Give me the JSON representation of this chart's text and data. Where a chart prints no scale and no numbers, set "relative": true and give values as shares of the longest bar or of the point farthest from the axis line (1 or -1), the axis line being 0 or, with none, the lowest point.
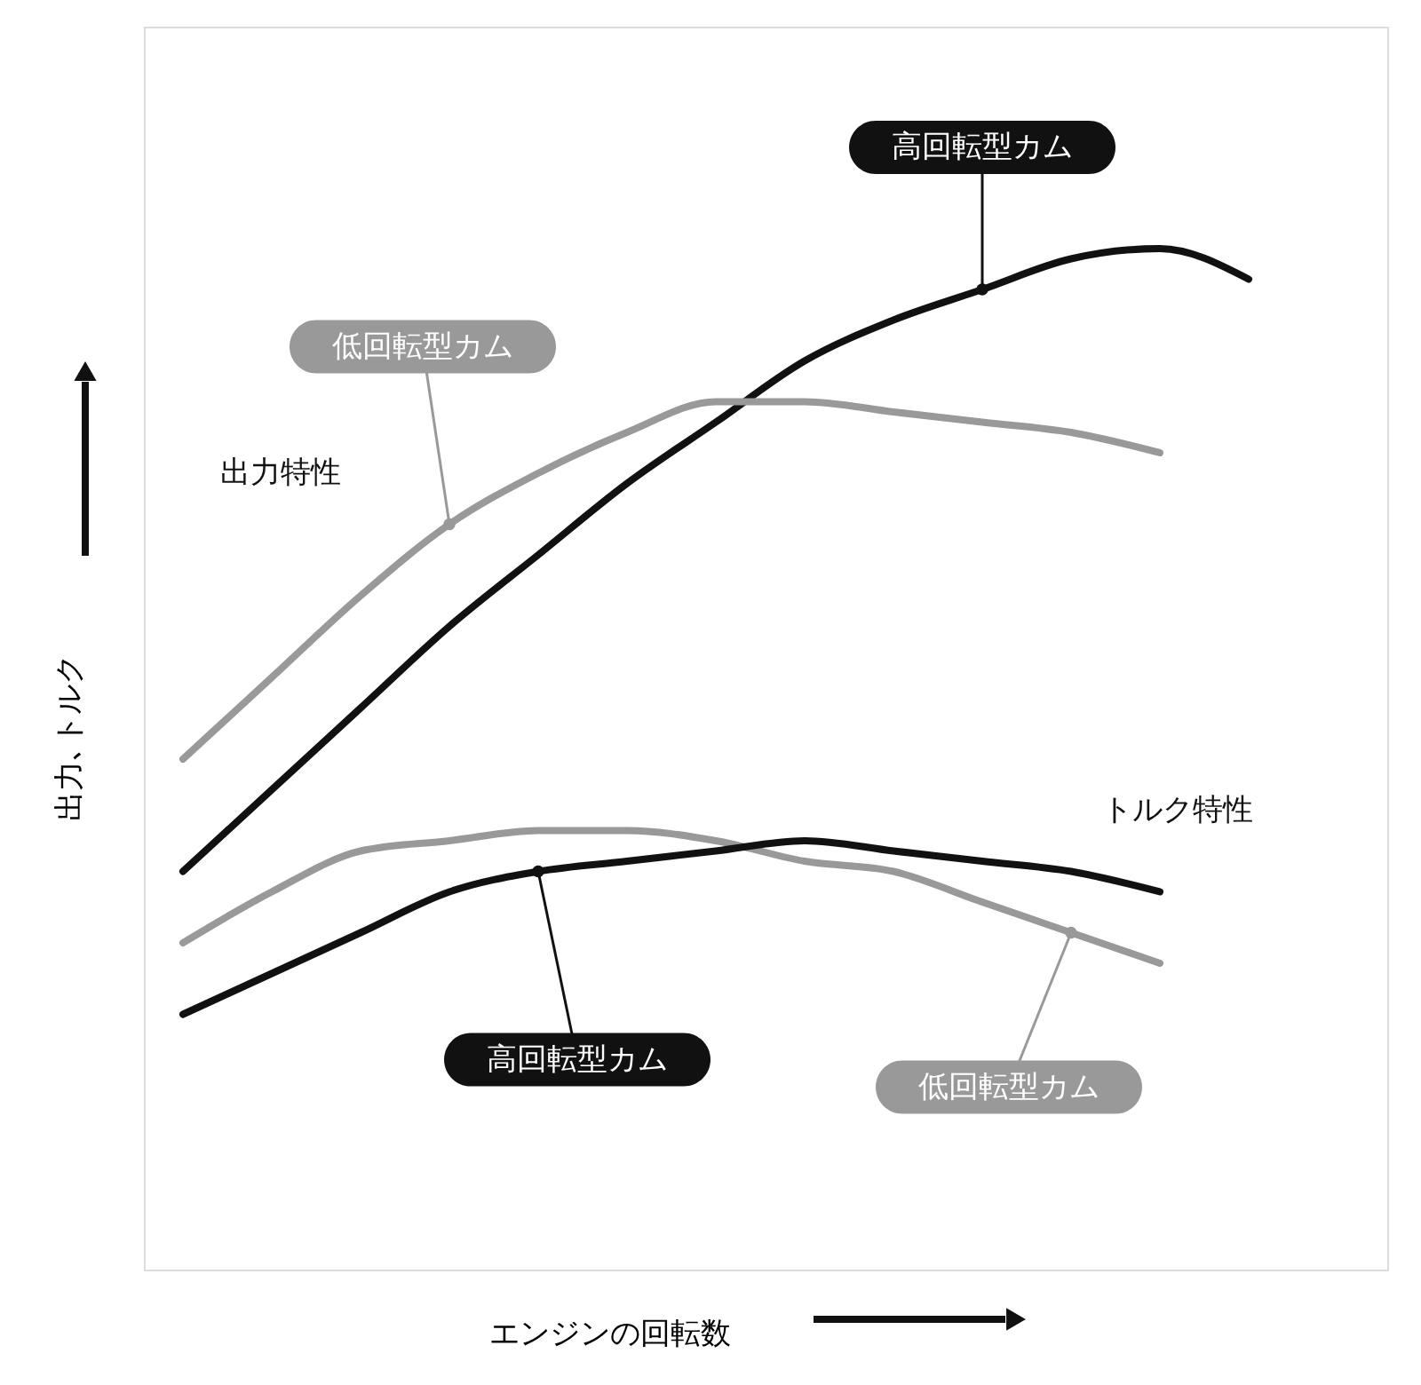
{
  "chart_data": {
    "type": "line",
    "relative": true,
    "xlabel": "エンジンの回転数",
    "ylabel": "出力､トルク",
    "categories": [
      null,
      null,
      null,
      null,
      null,
      null,
      null,
      null,
      null,
      null,
      null,
      null,
      null
    ],
    "series": [
      {
        "name": "高回転型カム",
        "color": "#111111",
        "values": [
          0.39,
          0.47,
          0.55,
          0.63,
          0.7,
          0.77,
          0.83,
          0.89,
          0.93,
          0.96,
          0.99,
          1.0,
          0.97
        ]
      },
      {
        "name": "低回転型カム",
        "color": "#999999",
        "values": [
          0.5,
          0.58,
          0.66,
          0.73,
          0.78,
          0.82,
          0.85,
          0.85,
          0.84,
          0.83,
          0.82,
          0.8,
          null
        ]
      },
      {
        "name": "低回転型カム",
        "color": "#999999",
        "values": [
          0.32,
          0.37,
          0.41,
          0.42,
          0.43,
          0.43,
          0.42,
          0.4,
          0.39,
          0.36,
          0.33,
          0.3,
          null
        ]
      },
      {
        "name": "高回転型カム",
        "color": "#111111",
        "values": [
          0.25,
          0.29,
          0.33,
          0.37,
          0.39,
          0.4,
          0.41,
          0.42,
          0.41,
          0.4,
          0.39,
          0.37,
          null
        ]
      }
    ],
    "annotations": [
      "出力特性",
      "トルク特性"
    ]
  }
}
